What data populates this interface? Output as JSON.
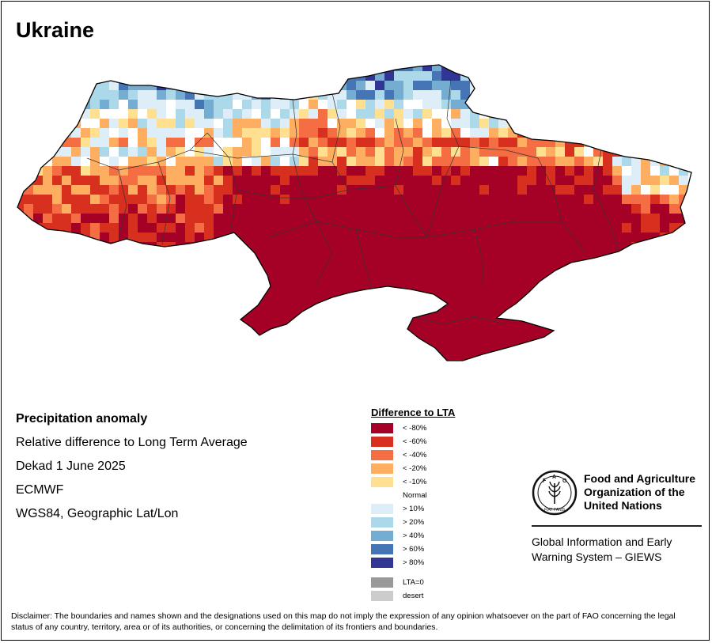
{
  "map": {
    "title": "Ukraine"
  },
  "info": {
    "heading": "Precipitation anomaly",
    "line1": "Relative difference to Long Term Average",
    "line2": "Dekad 1 June 2025",
    "line3": "ECMWF",
    "line4": "WGS84, Geographic Lat/Lon"
  },
  "legend": {
    "title": "Difference to LTA",
    "classes": [
      {
        "label": "< -80%",
        "color": "#a50026"
      },
      {
        "label": "< -60%",
        "color": "#d7301f"
      },
      {
        "label": "< -40%",
        "color": "#f46d43"
      },
      {
        "label": "< -20%",
        "color": "#fdae61"
      },
      {
        "label": "< -10%",
        "color": "#fee090"
      },
      {
        "label": "Normal",
        "color": "#ffffff"
      },
      {
        "label": "> 10%",
        "color": "#deeef8"
      },
      {
        "label": "> 20%",
        "color": "#abd9e9"
      },
      {
        "label": "> 40%",
        "color": "#74add1"
      },
      {
        "label": "> 60%",
        "color": "#4575b4"
      },
      {
        "label": "> 80%",
        "color": "#313695"
      }
    ],
    "extra": [
      {
        "label": "LTA=0",
        "color": "#999999"
      },
      {
        "label": "desert",
        "color": "#cccccc"
      }
    ]
  },
  "org": {
    "name": "Food and Agriculture\nOrganization of the\nUnited Nations",
    "system": "Global Information and Early\nWarning System – GIEWS",
    "logo_letters": "FAO",
    "logo_motto": "FIAT PANIS"
  },
  "disclaimer": "Disclaimer: The boundaries and names shown and the designations used on this map do not imply the expression of any opinion whatsoever on the part of FAO concerning the legal status of any country, territory, area or of its authorities, or concerning the delimitation of its frontiers and boundaries."
}
